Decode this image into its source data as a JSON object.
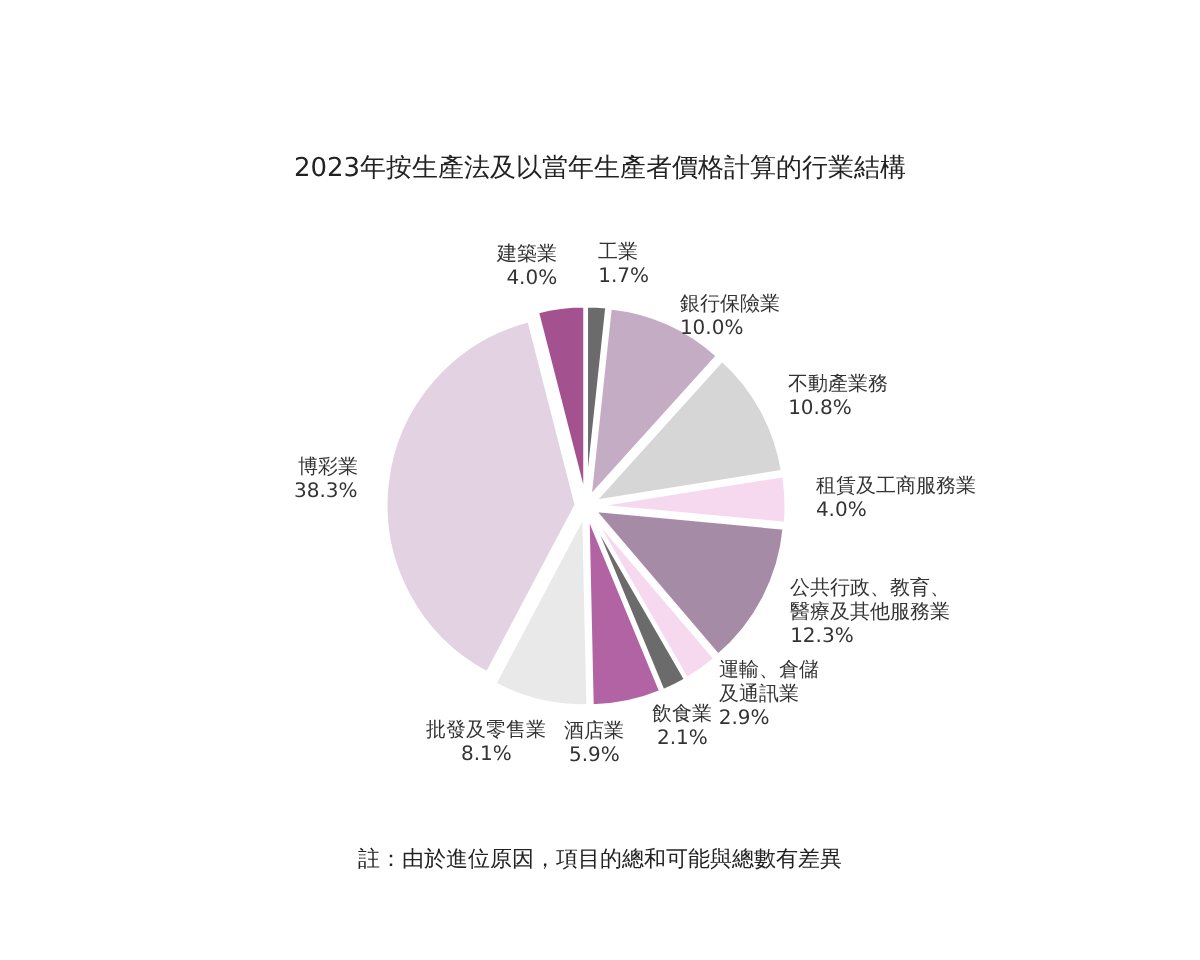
{
  "chart_data": {
    "type": "pie",
    "title": "2023年按生產法及以當年生產者價格計算的行業結構",
    "categories": [
      "工業",
      "銀行保險業",
      "不動產業務",
      "租賃及工商服務業",
      "公共行政、教育、醫療及其他服務業",
      "運輸、倉儲及通訊業",
      "飲食業",
      "酒店業",
      "批發及零售業",
      "博彩業",
      "建築業"
    ],
    "values": [
      1.7,
      10.0,
      10.8,
      4.0,
      12.3,
      2.9,
      2.1,
      5.9,
      8.1,
      38.3,
      4.0
    ],
    "value_labels": [
      "1.7%",
      "10.0%",
      "10.8%",
      "4.0%",
      "12.3%",
      "2.9%",
      "2.1%",
      "5.9%",
      "8.1%",
      "38.3%",
      "4.0%"
    ],
    "colors": [
      "#6b6b6b",
      "#c4acc4",
      "#d6d6d6",
      "#f6d9ee",
      "#a68ba6",
      "#f6d9ee",
      "#6b6b6b",
      "#b263a3",
      "#e9e9e9",
      "#e2d2e2",
      "#a4528f"
    ],
    "annotations": [
      "註：由於進位原因，項目的總和可能與總數有差異"
    ]
  }
}
